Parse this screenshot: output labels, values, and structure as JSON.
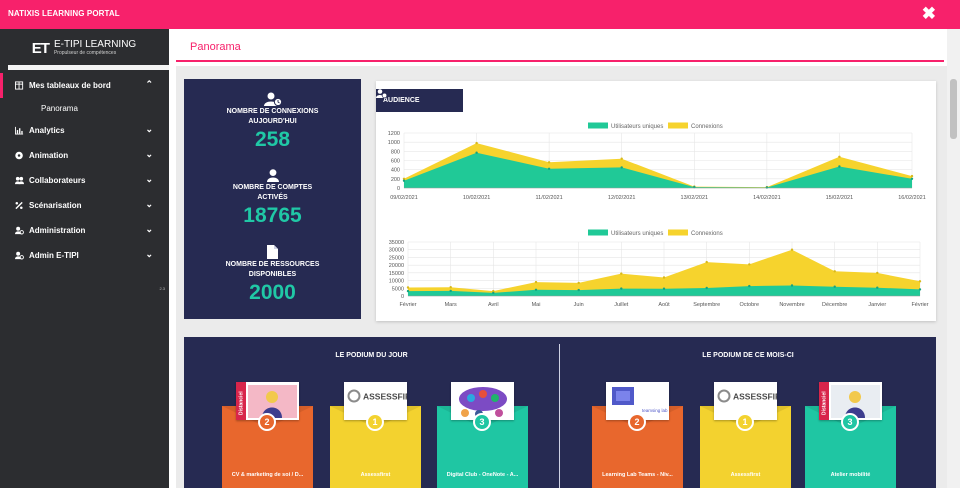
{
  "app": {
    "title": "NATIXIS LEARNING PORTAL",
    "close_glyph": "✖"
  },
  "logo": {
    "mark": "ET",
    "name": "E-TIPI LEARNING",
    "tagline": "Propulseur de compétences"
  },
  "sidebar": {
    "items": [
      {
        "label": "Mes tableaux de bord",
        "icon": "dashboard-icon",
        "chevron": "⌃",
        "expanded": true,
        "sub": [
          {
            "label": "Panorama"
          }
        ]
      },
      {
        "label": "Analytics",
        "icon": "chart-icon",
        "chevron": "⌄"
      },
      {
        "label": "Animation",
        "icon": "animation-icon",
        "chevron": "⌄"
      },
      {
        "label": "Collaborateurs",
        "icon": "users-icon",
        "chevron": "⌄"
      },
      {
        "label": "Scénarisation",
        "icon": "scenario-icon",
        "chevron": "⌄"
      },
      {
        "label": "Administration",
        "icon": "admin-icon",
        "chevron": "⌄"
      },
      {
        "label": "Admin E-TIPI",
        "icon": "admin-etipi-icon",
        "chevron": "⌄"
      }
    ],
    "version": "2.3"
  },
  "header": {
    "page_title": "Panorama"
  },
  "stats": [
    {
      "label_l1": "NOMBRE DE CONNEXIONS",
      "label_l2": "AUJOURD'HUI",
      "value": "258",
      "icon": "user-clock-icon"
    },
    {
      "label_l1": "NOMBRE DE COMPTES",
      "label_l2": "ACTIVÉS",
      "value": "18765",
      "icon": "user-icon"
    },
    {
      "label_l1": "NOMBRE DE RESSOURCES",
      "label_l2": "DISPONIBLES",
      "value": "2000",
      "icon": "document-icon"
    }
  ],
  "audience": {
    "tab_label": "AUDIENCE",
    "colors": {
      "uniques": "#20c997",
      "connexions": "#f6d32d"
    }
  },
  "chart_data": [
    {
      "type": "area",
      "categories": [
        "09/02/2021",
        "10/02/2021",
        "11/02/2021",
        "12/02/2021",
        "13/02/2021",
        "14/02/2021",
        "15/02/2021",
        "16/02/2021"
      ],
      "series": [
        {
          "name": "Utilisateurs uniques",
          "values": [
            160,
            770,
            420,
            450,
            20,
            10,
            470,
            200
          ]
        },
        {
          "name": "Connexions",
          "values": [
            200,
            980,
            560,
            640,
            30,
            20,
            680,
            260
          ]
        }
      ],
      "yticks": [
        0,
        200,
        400,
        600,
        800,
        1000,
        1200
      ],
      "ylim": [
        0,
        1200
      ],
      "legend": "top"
    },
    {
      "type": "area",
      "categories": [
        "Février",
        "Mars",
        "Avril",
        "Mai",
        "Juin",
        "Juillet",
        "Août",
        "Septembre",
        "Octobre",
        "Novembre",
        "Décembre",
        "Janvier",
        "Février"
      ],
      "series": [
        {
          "name": "Utilisateurs uniques",
          "values": [
            3200,
            3300,
            2000,
            4000,
            3800,
            4800,
            4700,
            5200,
            6400,
            6800,
            6000,
            5400,
            4300
          ]
        },
        {
          "name": "Connexions",
          "values": [
            5500,
            5700,
            3200,
            9000,
            8500,
            14500,
            12000,
            22000,
            20500,
            30000,
            16000,
            15000,
            9500
          ]
        }
      ],
      "yticks": [
        0,
        5000,
        10000,
        15000,
        20000,
        25000,
        30000,
        35000
      ],
      "ylim": [
        0,
        35000
      ],
      "legend": "top"
    }
  ],
  "podium": {
    "day_title": "LE PODIUM DU JOUR",
    "month_title": "LE PODIUM DE CE MOIS-CI",
    "day": [
      {
        "rank": "2",
        "label": "CV & marketing de soi / D...",
        "color": "#e8672d",
        "thumb": "distanciel"
      },
      {
        "rank": "1",
        "label": "Assessfirst",
        "color": "#f3d22f",
        "thumb": "assessfirst"
      },
      {
        "rank": "3",
        "label": "Digital Club - OneNote - A...",
        "color": "#1fc6a3",
        "thumb": "digital"
      }
    ],
    "month": [
      {
        "rank": "2",
        "label": "Learning Lab Teams - Niv...",
        "color": "#e8672d",
        "thumb": "teams"
      },
      {
        "rank": "1",
        "label": "Assessfirst",
        "color": "#f3d22f",
        "thumb": "assessfirst"
      },
      {
        "rank": "3",
        "label": "Atelier mobilité",
        "color": "#1fc6a3",
        "thumb": "distanciel"
      }
    ],
    "thumb_text": {
      "distanciel": "Distanciel",
      "assessfirst": "ASSESSFIRST",
      "teams_brand": "teamsing lab"
    }
  }
}
